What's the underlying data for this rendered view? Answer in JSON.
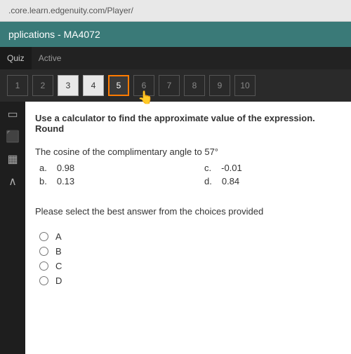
{
  "browser": {
    "url": ".core.learn.edgenuity.com/Player/"
  },
  "header": {
    "title": "pplications - MA4072"
  },
  "quizBar": {
    "quizLabel": "Quiz",
    "activeLabel": "Active"
  },
  "nav": {
    "items": [
      {
        "label": "1",
        "state": "dim"
      },
      {
        "label": "2",
        "state": "dim"
      },
      {
        "label": "3",
        "state": "filled"
      },
      {
        "label": "4",
        "state": "filled"
      },
      {
        "label": "5",
        "state": "current"
      },
      {
        "label": "6",
        "state": "dim"
      },
      {
        "label": "7",
        "state": "dim"
      },
      {
        "label": "8",
        "state": "dim"
      },
      {
        "label": "9",
        "state": "dim"
      },
      {
        "label": "10",
        "state": "dim"
      }
    ]
  },
  "question": {
    "prompt": "Use a calculator to find the approximate value of the expression. Round",
    "sub": "The cosine of the complimentary angle to 57°",
    "options": {
      "a": {
        "letter": "a.",
        "value": "0.98"
      },
      "b": {
        "letter": "b.",
        "value": "0.13"
      },
      "c": {
        "letter": "c.",
        "value": "-0.01"
      },
      "d": {
        "letter": "d.",
        "value": "0.84"
      }
    },
    "instruction": "Please select the best answer from the choices provided",
    "choices": [
      "A",
      "B",
      "C",
      "D"
    ]
  }
}
